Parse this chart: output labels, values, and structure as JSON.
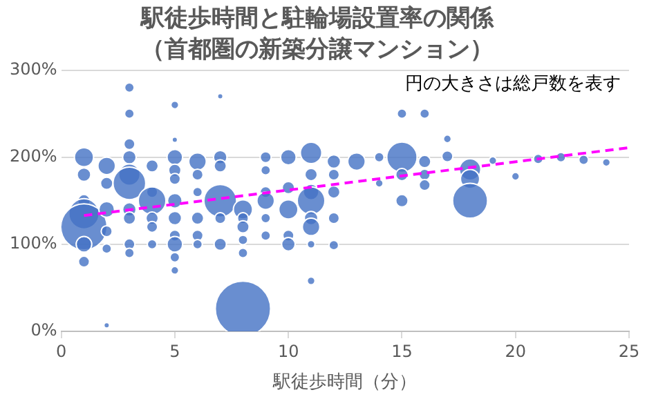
{
  "chart_data": {
    "type": "bubble",
    "title": "駅徒歩時間と駐輪場設置率の関係",
    "subtitle": "（首都圏の新築分譲マンション）",
    "xlabel": "駅徒歩時間（分）",
    "annotations": [
      "円の大きさは総戸数を表す"
    ],
    "xlim": [
      0,
      25
    ],
    "xticks": [
      0,
      5,
      10,
      15,
      20,
      25
    ],
    "ylim": [
      0,
      300
    ],
    "yticks": [
      {
        "value": 0,
        "label": "0%"
      },
      {
        "value": 100,
        "label": "100%"
      },
      {
        "value": 200,
        "label": "200%"
      },
      {
        "value": 300,
        "label": "300%"
      }
    ],
    "grid": "y",
    "series": [
      {
        "color": "#4472c4",
        "x": [
          1,
          1,
          1,
          1,
          1,
          1,
          1,
          2,
          2,
          2,
          2,
          2,
          2,
          3,
          3,
          3,
          3,
          3,
          3,
          3,
          3,
          3,
          3,
          4,
          4,
          4,
          4,
          4,
          4,
          5,
          5,
          5,
          5,
          5,
          5,
          5,
          5,
          5,
          5,
          5,
          6,
          6,
          6,
          6,
          6,
          6,
          7,
          7,
          7,
          7,
          7,
          7,
          8,
          8,
          8,
          8,
          8,
          8,
          9,
          9,
          9,
          9,
          9,
          9,
          10,
          10,
          10,
          10,
          10,
          11,
          11,
          11,
          11,
          11,
          11,
          11,
          11,
          12,
          12,
          12,
          12,
          12,
          13,
          14,
          14,
          15,
          15,
          15,
          15,
          16,
          16,
          16,
          16,
          17,
          17,
          18,
          18,
          18,
          19,
          20,
          21,
          22,
          23,
          24
        ],
        "values": [
          200,
          180,
          150,
          135,
          120,
          100,
          80,
          190,
          170,
          140,
          115,
          95,
          7,
          280,
          250,
          215,
          200,
          180,
          170,
          140,
          130,
          100,
          90,
          190,
          160,
          150,
          130,
          120,
          100,
          260,
          220,
          200,
          185,
          175,
          150,
          130,
          110,
          100,
          85,
          70,
          195,
          180,
          160,
          130,
          110,
          100,
          270,
          200,
          190,
          150,
          130,
          100,
          26,
          140,
          130,
          120,
          105,
          90,
          200,
          185,
          160,
          150,
          130,
          110,
          200,
          165,
          140,
          110,
          100,
          205,
          180,
          160,
          150,
          130,
          120,
          100,
          58,
          195,
          180,
          160,
          130,
          99,
          195,
          200,
          170,
          250,
          200,
          180,
          150,
          250,
          195,
          180,
          168,
          221,
          201,
          186,
          175,
          150,
          196,
          178,
          198,
          200,
          197,
          194
        ],
        "sizes": [
          0.12,
          0.06,
          0.05,
          0.3,
          0.7,
          0.08,
          0.04,
          0.1,
          0.05,
          0.08,
          0.04,
          0.03,
          0.01,
          0.03,
          0.03,
          0.04,
          0.06,
          0.15,
          0.35,
          0.06,
          0.05,
          0.04,
          0.03,
          0.05,
          0.04,
          0.25,
          0.05,
          0.04,
          0.03,
          0.02,
          0.01,
          0.08,
          0.05,
          0.04,
          0.07,
          0.06,
          0.04,
          0.08,
          0.03,
          0.02,
          0.1,
          0.04,
          0.03,
          0.05,
          0.04,
          0.03,
          0.01,
          0.06,
          0.05,
          0.35,
          0.04,
          0.05,
          1,
          0.12,
          0.04,
          0.05,
          0.03,
          0.03,
          0.04,
          0.03,
          0.04,
          0.1,
          0.03,
          0.03,
          0.08,
          0.05,
          0.12,
          0.04,
          0.06,
          0.15,
          0.05,
          0.08,
          0.25,
          0.06,
          0.1,
          0.02,
          0.02,
          0.06,
          0.04,
          0.05,
          0.04,
          0.03,
          0.1,
          0.03,
          0.02,
          0.03,
          0.3,
          0.05,
          0.05,
          0.03,
          0.05,
          0.04,
          0.04,
          0.02,
          0.04,
          0.15,
          0.12,
          0.4,
          0.02,
          0.02,
          0.03,
          0.03,
          0.03,
          0.02
        ]
      },
      {
        "type": "line",
        "color": "#ff00ff",
        "line_style": "dashed",
        "marker": "none",
        "x": [
          1,
          25
        ],
        "values": [
          133,
          211
        ]
      }
    ]
  }
}
